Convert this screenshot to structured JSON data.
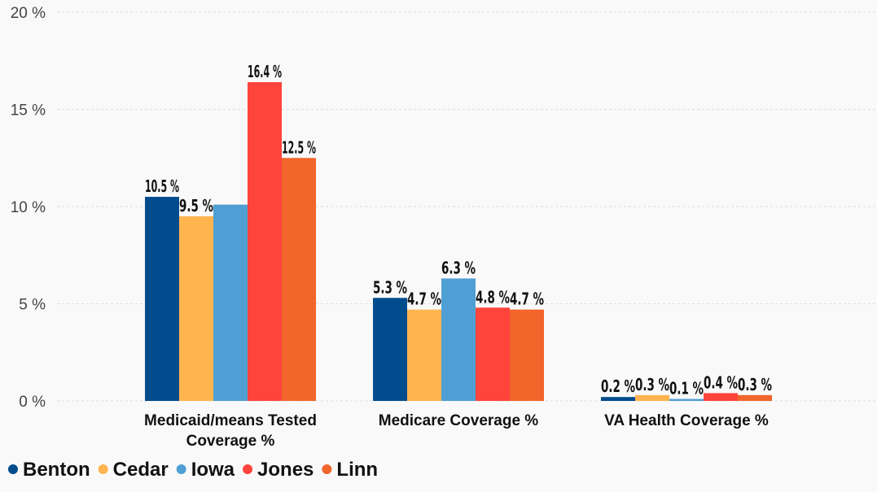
{
  "chart_data": {
    "type": "bar",
    "categories": [
      [
        "Medicaid/means Tested",
        "Coverage %"
      ],
      [
        "Medicare Coverage %"
      ],
      [
        "VA Health Coverage %"
      ]
    ],
    "series": [
      {
        "name": "Benton",
        "color": "#004c8c",
        "values": [
          10.5,
          5.3,
          0.2
        ],
        "labels": [
          "10.5 %",
          "5.3 %",
          "0.2 %"
        ]
      },
      {
        "name": "Cedar",
        "color": "#ffb450",
        "values": [
          9.5,
          4.7,
          0.3
        ],
        "labels": [
          "9.5 %",
          "4.7 %",
          "0.3 %"
        ]
      },
      {
        "name": "Iowa",
        "color": "#4f9fd4",
        "values": [
          10.1,
          6.3,
          0.1
        ],
        "labels": [
          "",
          "6.3 %",
          "0.1 %"
        ]
      },
      {
        "name": "Jones",
        "color": "#ff443b",
        "values": [
          16.4,
          4.8,
          0.4
        ],
        "labels": [
          "16.4 %",
          "4.8 %",
          "0.4 %"
        ]
      },
      {
        "name": "Linn",
        "color": "#f2652b",
        "values": [
          12.5,
          4.7,
          0.3
        ],
        "labels": [
          "12.5 %",
          "4.7 %",
          "0.3 %"
        ]
      }
    ],
    "ylim": [
      0,
      20
    ],
    "yticks": [
      0,
      5,
      10,
      15,
      20
    ],
    "ytick_labels": [
      "0 %",
      "5 %",
      "10 %",
      "15 %",
      "20 %"
    ],
    "grid": true,
    "legend_position": "bottom-left"
  }
}
